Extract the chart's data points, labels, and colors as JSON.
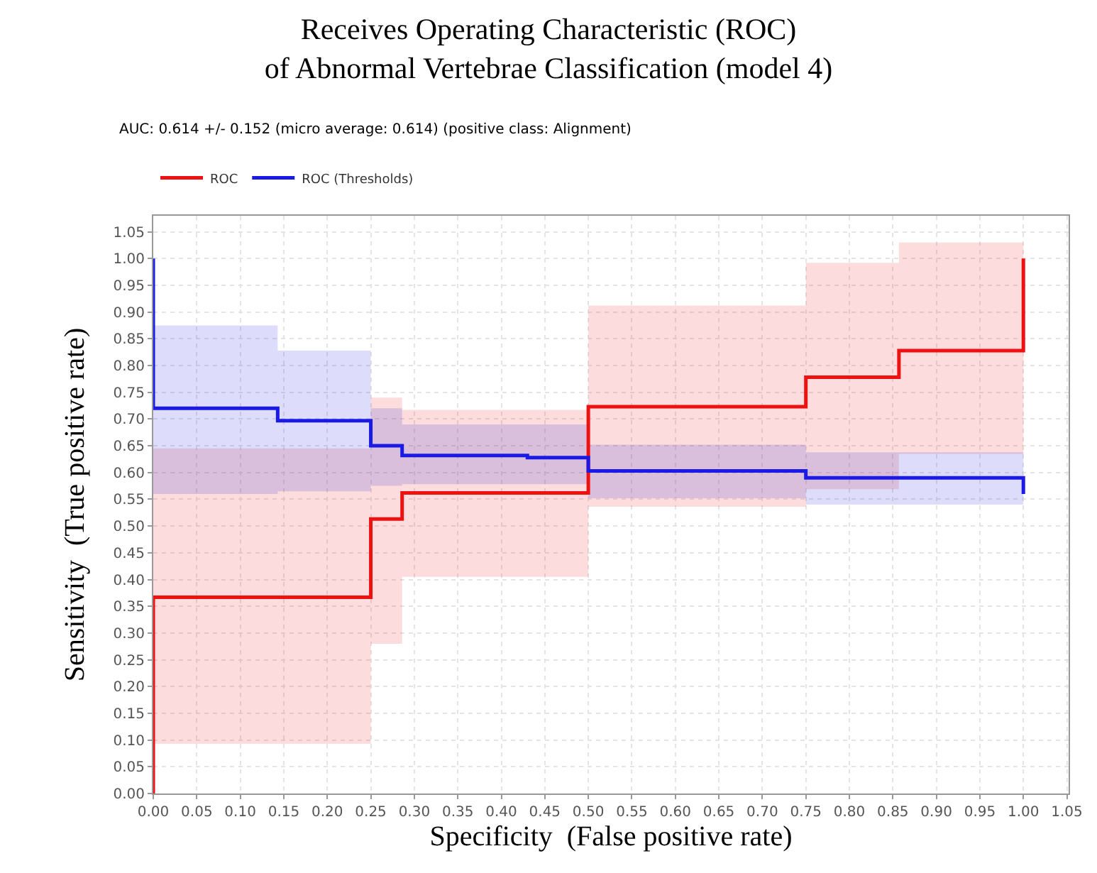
{
  "chart_data": {
    "type": "line",
    "title": "Receives Operating Characteristic (ROC)\nof Abnormal Vertebrae Classification (model 4)",
    "subtitle": "AUC: 0.614 +/- 0.152 (micro average: 0.614) (positive class: Alignment)",
    "xlabel": "Specificity  (False positive rate)",
    "ylabel": "Sensitivity  (True positive rate)",
    "series": [
      {
        "name": "ROC",
        "color": "#ee1111",
        "x": [
          0,
          0,
          0.25,
          0.25,
          0.286,
          0.286,
          0.5,
          0.5,
          0.75,
          0.75,
          0.857,
          0.857,
          1.0,
          1.0
        ],
        "values": [
          0,
          0.367,
          0.367,
          0.513,
          0.513,
          0.562,
          0.562,
          0.723,
          0.723,
          0.778,
          0.778,
          0.828,
          0.828,
          1.0
        ],
        "lower": [
          0.093,
          0.093,
          0.093,
          0.28,
          0.28,
          0.405,
          0.405,
          0.536,
          0.536,
          0.569,
          0.569,
          0.635,
          0.635,
          0.635
        ],
        "upper": [
          0.645,
          0.645,
          0.645,
          0.74,
          0.74,
          0.717,
          0.717,
          0.912,
          0.912,
          0.992,
          0.992,
          1.03,
          1.03,
          1.03
        ]
      },
      {
        "name": "ROC (Thresholds)",
        "color": "#1a1ae6",
        "x": [
          0,
          0,
          0.143,
          0.143,
          0.25,
          0.25,
          0.286,
          0.286,
          0.43,
          0.43,
          0.5,
          0.5,
          0.75,
          0.75,
          1.0,
          1.0
        ],
        "values": [
          1.0,
          0.72,
          0.72,
          0.697,
          0.697,
          0.65,
          0.65,
          0.632,
          0.632,
          0.628,
          0.628,
          0.603,
          0.603,
          0.59,
          0.59,
          0.56
        ],
        "lower": [
          0.56,
          0.56,
          0.56,
          0.565,
          0.565,
          0.575,
          0.575,
          0.578,
          0.578,
          0.578,
          0.578,
          0.552,
          0.552,
          0.54,
          0.54,
          0.54
        ],
        "upper": [
          0.875,
          0.875,
          0.875,
          0.828,
          0.828,
          0.72,
          0.72,
          0.69,
          0.69,
          0.69,
          0.69,
          0.652,
          0.652,
          0.638,
          0.638,
          0.638
        ]
      }
    ],
    "xlim": [
      0,
      1.052
    ],
    "ylim": [
      0,
      1.08
    ],
    "xticks": [
      {
        "value": 0,
        "label": "0.00"
      },
      0.05,
      {
        "value": 0.1,
        "label": "0.10"
      },
      0.15,
      {
        "value": 0.2,
        "label": "0.20"
      },
      0.25,
      {
        "value": 0.3,
        "label": "0.30"
      },
      0.35,
      {
        "value": 0.4,
        "label": "0.40"
      },
      0.45,
      {
        "value": 0.5,
        "label": "0.50"
      },
      0.55,
      {
        "value": 0.6,
        "label": "0.60"
      },
      0.65,
      {
        "value": 0.7,
        "label": "0.70"
      },
      0.75,
      {
        "value": 0.8,
        "label": "0.80"
      },
      0.85,
      {
        "value": 0.9,
        "label": "0.90"
      },
      0.95,
      {
        "value": 1,
        "label": "1.00"
      },
      1.05
    ],
    "yticks": [
      {
        "value": 0,
        "label": "0.00"
      },
      0.05,
      {
        "value": 0.1,
        "label": "0.10"
      },
      0.15,
      {
        "value": 0.2,
        "label": "0.20"
      },
      0.25,
      {
        "value": 0.3,
        "label": "0.30"
      },
      0.35,
      {
        "value": 0.4,
        "label": "0.40"
      },
      0.45,
      {
        "value": 0.5,
        "label": "0.50"
      },
      0.55,
      {
        "value": 0.6,
        "label": "0.60"
      },
      0.65,
      {
        "value": 0.7,
        "label": "0.70"
      },
      0.75,
      {
        "value": 0.8,
        "label": "0.80"
      },
      0.85,
      {
        "value": 0.9,
        "label": "0.90"
      },
      0.95,
      {
        "value": 1,
        "label": "1.00"
      },
      1.05
    ],
    "grid": true,
    "legend": "top left",
    "marker": "none",
    "line_style": "solid"
  }
}
